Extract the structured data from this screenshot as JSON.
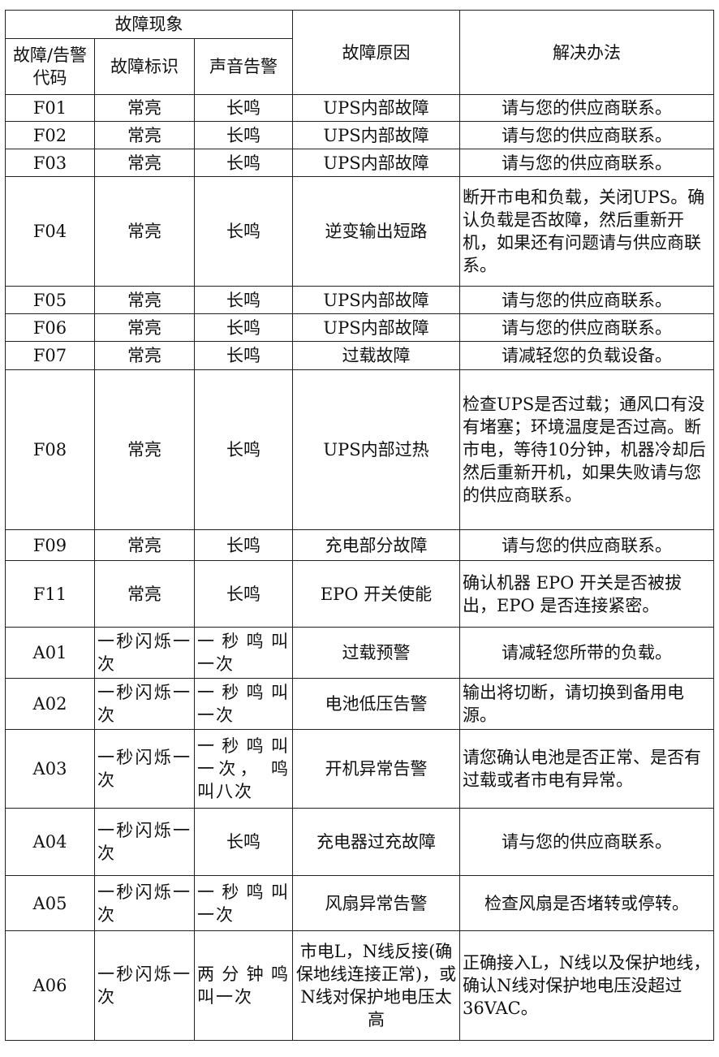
{
  "header": {
    "group": "故障现象",
    "code": "故障/告警代码",
    "indicator": "故障标识",
    "sound": "声音告警",
    "cause": "故障原因",
    "solution": "解决办法"
  },
  "rows": [
    {
      "code": "F01",
      "indicator": "常亮",
      "sound": "长鸣",
      "cause": "UPS内部故障",
      "solution": "请与您的供应商联系。"
    },
    {
      "code": "F02",
      "indicator": "常亮",
      "sound": "长鸣",
      "cause": "UPS内部故障",
      "solution": "请与您的供应商联系。"
    },
    {
      "code": "F03",
      "indicator": "常亮",
      "sound": "长鸣",
      "cause": "UPS内部故障",
      "solution": "请与您的供应商联系。"
    },
    {
      "code": "F04",
      "indicator": "常亮",
      "sound": "长鸣",
      "cause": "逆变输出短路",
      "solution": "断开市电和负载，关闭UPS。确认负载是否故障，然后重新开机，如果还有问题请与供应商联系。"
    },
    {
      "code": "F05",
      "indicator": "常亮",
      "sound": "长鸣",
      "cause": "UPS内部故障",
      "solution": "请与您的供应商联系。"
    },
    {
      "code": "F06",
      "indicator": "常亮",
      "sound": "长鸣",
      "cause": "UPS内部故障",
      "solution": "请与您的供应商联系。"
    },
    {
      "code": "F07",
      "indicator": "常亮",
      "sound": "长鸣",
      "cause": "过载故障",
      "solution": "请减轻您的负载设备。"
    },
    {
      "code": "F08",
      "indicator": "常亮",
      "sound": "长鸣",
      "cause": "UPS内部过热",
      "solution": "检查UPS是否过载；通风口有没有堵塞；环境温度是否过高。断市电，等待10分钟，机器冷却后然后重新开机，如果失败请与您的供应商联系。"
    },
    {
      "code": "F09",
      "indicator": "常亮",
      "sound": "长鸣",
      "cause": "充电部分故障",
      "solution": "请与您的供应商联系。"
    },
    {
      "code": "F11",
      "indicator": "常亮",
      "sound": "长鸣",
      "cause": "EPO 开关使能",
      "solution": "确认机器 EPO 开关是否被拔出，EPO 是否连接紧密。"
    },
    {
      "code": "A01",
      "indicator": "一秒闪烁一次",
      "sound": "一秒鸣叫一次",
      "cause": "过载预警",
      "solution": "请减轻您所带的负载。"
    },
    {
      "code": "A02",
      "indicator": "一秒闪烁一次",
      "sound": "一秒鸣叫一次",
      "cause": "电池低压告警",
      "solution": "输出将切断，请切换到备用电源。"
    },
    {
      "code": "A03",
      "indicator": "一秒闪烁一次",
      "sound": "一秒鸣叫一次， 鸣叫八次",
      "cause": "开机异常告警",
      "solution": "请您确认电池是否正常、是否有过载或者市电有异常。"
    },
    {
      "code": "A04",
      "indicator": "一秒闪烁一次",
      "sound": "长鸣",
      "cause": "充电器过充故障",
      "solution": "请与您的供应商联系。"
    },
    {
      "code": "A05",
      "indicator": "一秒闪烁一次",
      "sound": "一秒鸣叫一次",
      "cause": "风扇异常告警",
      "solution": "检查风扇是否堵转或停转。"
    },
    {
      "code": "A06",
      "indicator": "一秒闪烁一次",
      "sound": "两分钟鸣叫一次",
      "cause": "市电L，N线反接(确保地线连接正常)，或N线对保护地电压太高",
      "solution": "正确接入L，N线以及保护地线，确认N线对保护地电压没超过36VAC。"
    }
  ]
}
